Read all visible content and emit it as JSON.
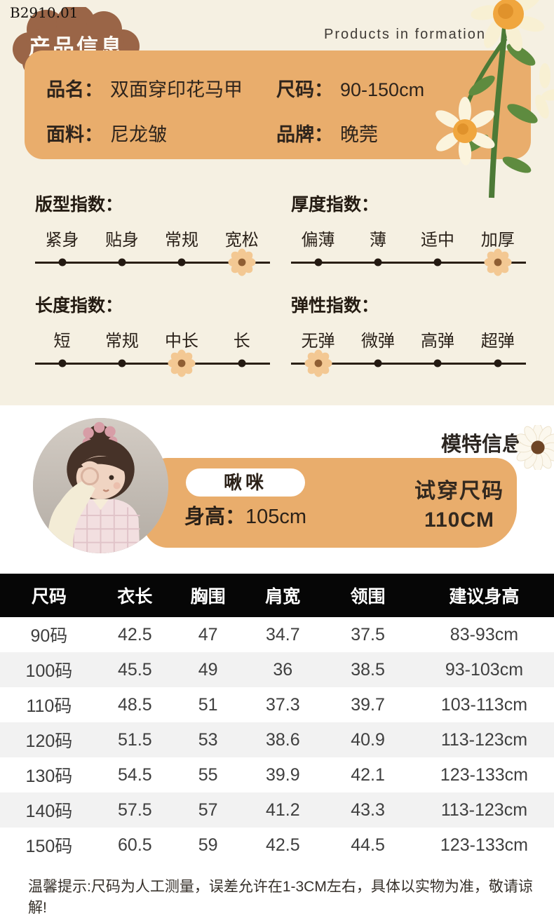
{
  "page": {
    "code": "B2910.01",
    "title": "产品信息",
    "subtitle": "Products in formation"
  },
  "product": {
    "fields": [
      {
        "label": "品名：",
        "value": "双面穿印花马甲"
      },
      {
        "label": "尺码：",
        "value": "90-150cm"
      },
      {
        "label": "面料：",
        "value": "尼龙皱"
      },
      {
        "label": "品牌：",
        "value": "晚莞"
      }
    ]
  },
  "indexes": [
    {
      "title": "版型指数：",
      "options": [
        "紧身",
        "贴身",
        "常规",
        "宽松"
      ],
      "selected": 3
    },
    {
      "title": "厚度指数：",
      "options": [
        "偏薄",
        "薄",
        "适中",
        "加厚"
      ],
      "selected": 3
    },
    {
      "title": "长度指数：",
      "options": [
        "短",
        "常规",
        "中长",
        "长"
      ],
      "selected": 2
    },
    {
      "title": "弹性指数：",
      "options": [
        "无弹",
        "微弹",
        "高弹",
        "超弹"
      ],
      "selected": 0
    }
  ],
  "model": {
    "section_title": "模特信息",
    "name": "啾咪",
    "height_label": "身高：",
    "height_value": "105cm",
    "fit_label": "试穿尺码",
    "fit_value": "110CM"
  },
  "size_table": {
    "headers": [
      "尺码",
      "衣长",
      "胸围",
      "肩宽",
      "领围",
      "建议身高"
    ],
    "rows": [
      [
        "90码",
        "42.5",
        "47",
        "34.7",
        "37.5",
        "83-93cm"
      ],
      [
        "100码",
        "45.5",
        "49",
        "36",
        "38.5",
        "93-103cm"
      ],
      [
        "110码",
        "48.5",
        "51",
        "37.3",
        "39.7",
        "103-113cm"
      ],
      [
        "120码",
        "51.5",
        "53",
        "38.6",
        "40.9",
        "113-123cm"
      ],
      [
        "130码",
        "54.5",
        "55",
        "39.9",
        "42.1",
        "123-133cm"
      ],
      [
        "140码",
        "57.5",
        "57",
        "41.2",
        "43.3",
        "113-123cm"
      ],
      [
        "150码",
        "60.5",
        "59",
        "42.5",
        "44.5",
        "123-133cm"
      ]
    ]
  },
  "note": "温馨提示:尺码为人工测量，误差允许在1-3CM左右，具体以实物为准，敬请谅解!",
  "colors": {
    "background_cream": "#f5f0e2",
    "box_orange": "#e9ad6c",
    "cloud_brown": "#9a6547",
    "flower_petal": "#f3c893",
    "flower_center": "#8f5e33",
    "table_header_bg": "#060606",
    "table_alt_row": "#f2f2f2"
  }
}
